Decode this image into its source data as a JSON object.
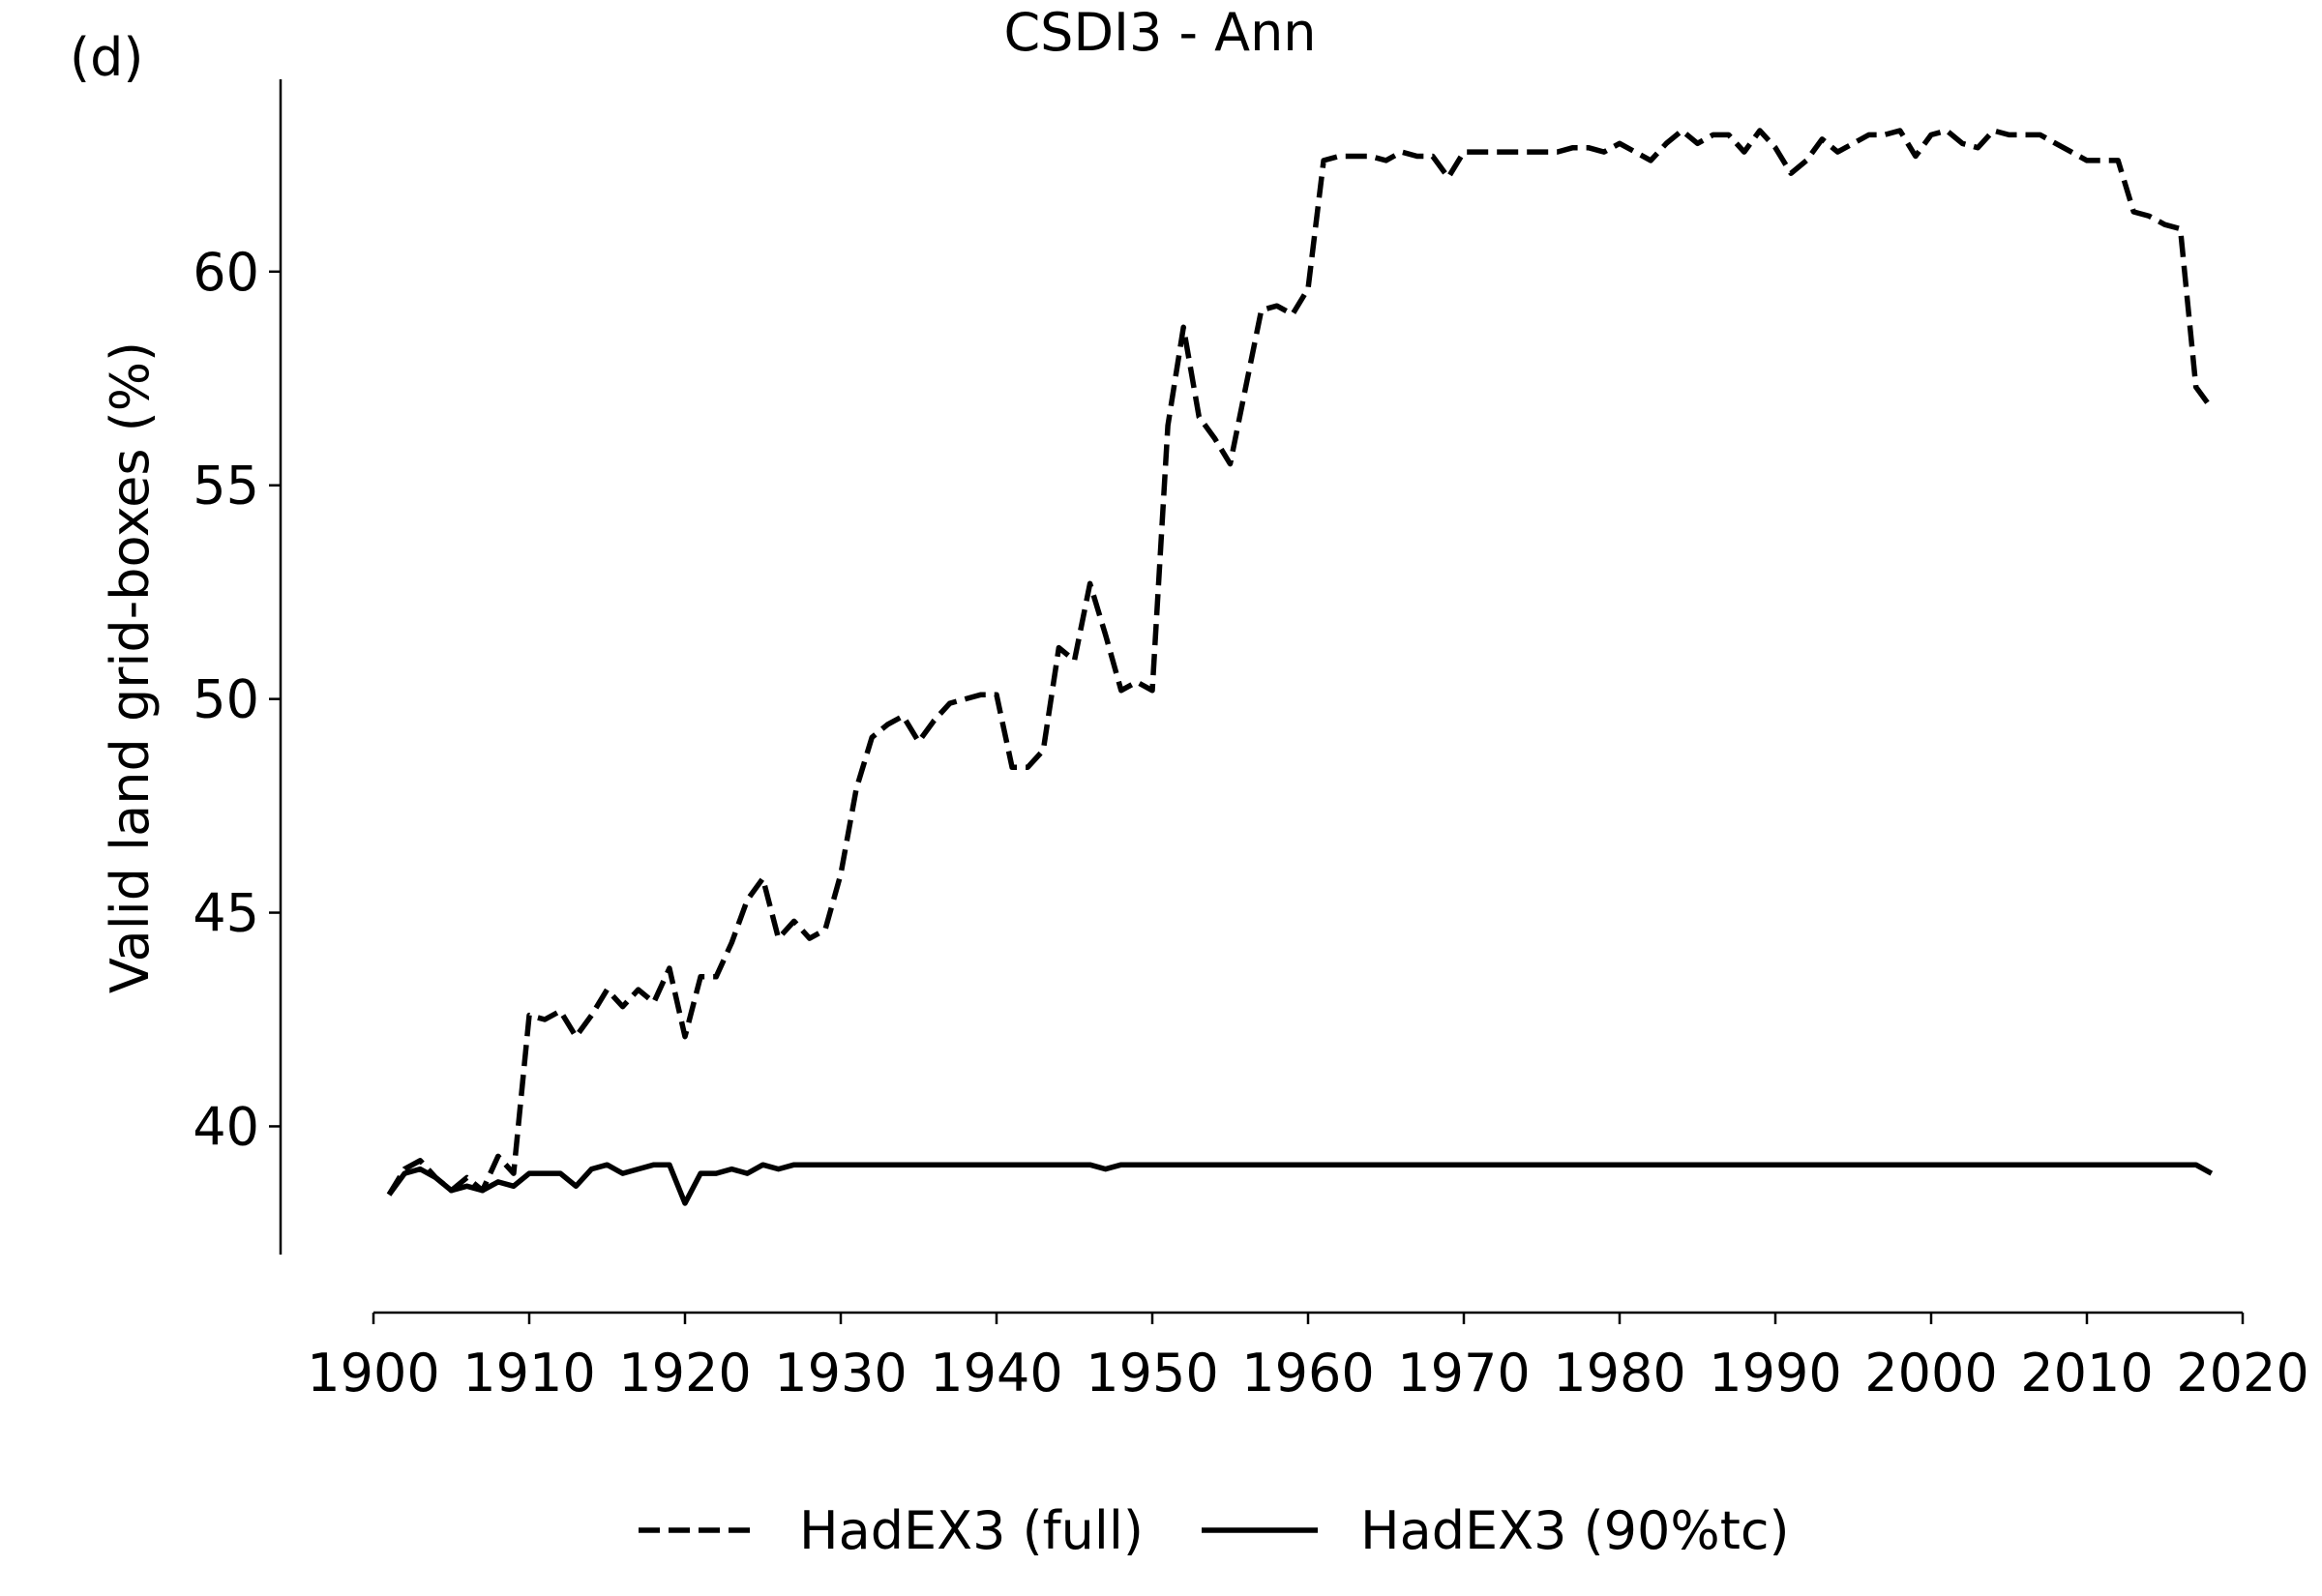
{
  "panel_label": "(d)",
  "chart_data": {
    "type": "line",
    "title": "CSDI3 - Ann",
    "xlabel": "",
    "ylabel": "Valid land grid-boxes (%)",
    "xlim": [
      1900,
      2020
    ],
    "ylim": [
      37,
      64.5
    ],
    "x_ticks": [
      1900,
      1910,
      1920,
      1930,
      1940,
      1950,
      1960,
      1970,
      1980,
      1990,
      2000,
      2010,
      2020
    ],
    "y_ticks": [
      40,
      45,
      50,
      55,
      60
    ],
    "grid": false,
    "legend_position": "bottom-center",
    "x": [
      1901,
      1902,
      1903,
      1904,
      1905,
      1906,
      1907,
      1908,
      1909,
      1910,
      1911,
      1912,
      1913,
      1914,
      1915,
      1916,
      1917,
      1918,
      1919,
      1920,
      1921,
      1922,
      1923,
      1924,
      1925,
      1926,
      1927,
      1928,
      1929,
      1930,
      1931,
      1932,
      1933,
      1934,
      1935,
      1936,
      1937,
      1938,
      1939,
      1940,
      1941,
      1942,
      1943,
      1944,
      1945,
      1946,
      1947,
      1948,
      1949,
      1950,
      1951,
      1952,
      1953,
      1954,
      1955,
      1956,
      1957,
      1958,
      1959,
      1960,
      1961,
      1962,
      1963,
      1964,
      1965,
      1966,
      1967,
      1968,
      1969,
      1970,
      1971,
      1972,
      1973,
      1974,
      1975,
      1976,
      1977,
      1978,
      1979,
      1980,
      1981,
      1982,
      1983,
      1984,
      1985,
      1986,
      1987,
      1988,
      1989,
      1990,
      1991,
      1992,
      1993,
      1994,
      1995,
      1996,
      1997,
      1998,
      1999,
      2000,
      2001,
      2002,
      2003,
      2004,
      2005,
      2006,
      2007,
      2008,
      2009,
      2010,
      2011,
      2012,
      2013,
      2014,
      2015,
      2016,
      2017,
      2018
    ],
    "series": [
      {
        "name": "HadEX3 (full)",
        "style": "dashed",
        "color": "#000000",
        "values": [
          38.4,
          39.0,
          39.2,
          38.8,
          38.5,
          38.8,
          38.5,
          39.3,
          38.9,
          42.6,
          42.5,
          42.7,
          42.1,
          42.6,
          43.2,
          42.8,
          43.2,
          42.9,
          43.7,
          42.1,
          43.5,
          43.5,
          44.3,
          45.3,
          45.8,
          44.4,
          44.8,
          44.4,
          44.6,
          45.9,
          47.9,
          49.1,
          49.4,
          49.6,
          49.0,
          49.5,
          49.9,
          50.0,
          50.1,
          50.1,
          48.4,
          48.4,
          48.8,
          51.2,
          50.9,
          52.7,
          51.5,
          50.2,
          50.4,
          50.2,
          56.4,
          58.7,
          56.6,
          56.1,
          55.5,
          57.3,
          59.1,
          59.2,
          59.0,
          59.6,
          62.6,
          62.7,
          62.7,
          62.7,
          62.6,
          62.8,
          62.7,
          62.7,
          62.2,
          62.8,
          62.8,
          62.8,
          62.8,
          62.8,
          62.8,
          62.8,
          62.9,
          62.9,
          62.8,
          63.0,
          62.8,
          62.6,
          63.0,
          63.3,
          63.0,
          63.2,
          63.2,
          62.8,
          63.3,
          62.9,
          62.3,
          62.6,
          63.1,
          62.8,
          63.0,
          63.2,
          63.2,
          63.3,
          62.7,
          63.2,
          63.3,
          63.0,
          62.9,
          63.3,
          63.2,
          63.2,
          63.2,
          63.0,
          62.8,
          62.6,
          62.6,
          62.6,
          61.4,
          61.3,
          61.1,
          61.0,
          57.3,
          56.8
        ]
      },
      {
        "name": "HadEX3 (90%tc)",
        "style": "solid",
        "color": "#000000",
        "values": [
          38.4,
          38.9,
          39.0,
          38.8,
          38.5,
          38.6,
          38.5,
          38.7,
          38.6,
          38.9,
          38.9,
          38.9,
          38.6,
          39.0,
          39.1,
          38.9,
          39.0,
          39.1,
          39.1,
          38.2,
          38.9,
          38.9,
          39.0,
          38.9,
          39.1,
          39.0,
          39.1,
          39.1,
          39.1,
          39.1,
          39.1,
          39.1,
          39.1,
          39.1,
          39.1,
          39.1,
          39.1,
          39.1,
          39.1,
          39.1,
          39.1,
          39.1,
          39.1,
          39.1,
          39.1,
          39.1,
          39.0,
          39.1,
          39.1,
          39.1,
          39.1,
          39.1,
          39.1,
          39.1,
          39.1,
          39.1,
          39.1,
          39.1,
          39.1,
          39.1,
          39.1,
          39.1,
          39.1,
          39.1,
          39.1,
          39.1,
          39.1,
          39.1,
          39.1,
          39.1,
          39.1,
          39.1,
          39.1,
          39.1,
          39.1,
          39.1,
          39.1,
          39.1,
          39.1,
          39.1,
          39.1,
          39.1,
          39.1,
          39.1,
          39.1,
          39.1,
          39.1,
          39.1,
          39.1,
          39.1,
          39.1,
          39.1,
          39.1,
          39.1,
          39.1,
          39.1,
          39.1,
          39.1,
          39.1,
          39.1,
          39.1,
          39.1,
          39.1,
          39.1,
          39.1,
          39.1,
          39.1,
          39.1,
          39.1,
          39.1,
          39.1,
          39.1,
          39.1,
          39.1,
          39.1,
          39.1,
          39.1,
          38.9
        ]
      }
    ]
  }
}
